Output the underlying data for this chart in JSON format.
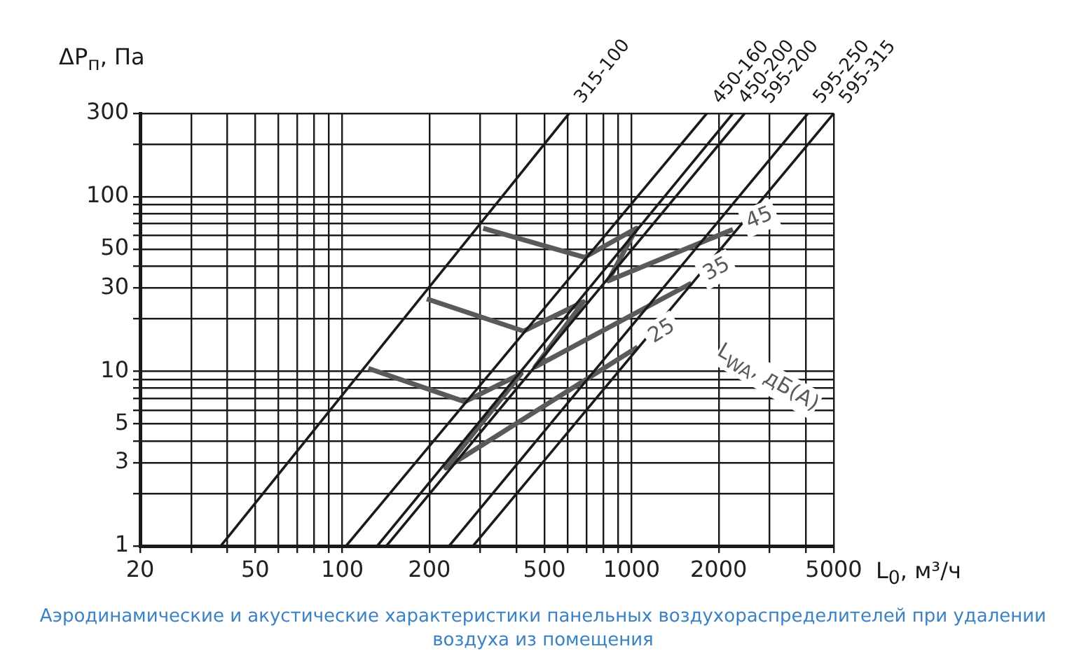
{
  "chart_data": {
    "type": "line",
    "title": "Аэродинамические и акустические характеристики панельных воздухораспределителей при удалении воздуха из помещения",
    "xlabel": "L$_{0}$, м³/ч",
    "ylabel": "ΔP$_{п}$, Па",
    "annotations": [
      "L$_{WA}$, дБ(А)"
    ],
    "log": "xy",
    "grid": true,
    "legend": false,
    "marker": "none",
    "xlim": [
      20,
      5000
    ],
    "ylim": [
      1,
      300
    ],
    "xticks": [
      20,
      {
        "value": 30,
        "label": null
      },
      {
        "value": 40,
        "label": null
      },
      50,
      {
        "value": 60,
        "label": null
      },
      {
        "value": 70,
        "label": null
      },
      {
        "value": 80,
        "label": null
      },
      {
        "value": 90,
        "label": null
      },
      100,
      200,
      {
        "value": 300,
        "label": null
      },
      {
        "value": 400,
        "label": null
      },
      500,
      {
        "value": 600,
        "label": null
      },
      {
        "value": 700,
        "label": null
      },
      {
        "value": 800,
        "label": null
      },
      {
        "value": 900,
        "label": null
      },
      1000,
      2000,
      {
        "value": 3000,
        "label": null
      },
      {
        "value": 4000,
        "label": null
      },
      5000
    ],
    "yticks": [
      1,
      {
        "value": 2,
        "label": null
      },
      3,
      {
        "value": 4,
        "label": null
      },
      5,
      {
        "value": 6,
        "label": null
      },
      {
        "value": 7,
        "label": null
      },
      {
        "value": 8,
        "label": null
      },
      {
        "value": 9,
        "label": null
      },
      10,
      {
        "value": 20,
        "label": null
      },
      30,
      {
        "value": 40,
        "label": null
      },
      50,
      {
        "value": 60,
        "label": null
      },
      {
        "value": 70,
        "label": null
      },
      {
        "value": 80,
        "label": null
      },
      {
        "value": 90,
        "label": null
      },
      100,
      {
        "value": 200,
        "label": null
      },
      300
    ],
    "series": [
      {
        "name": "315-100",
        "color": "#1a1a1a",
        "x": [
          38,
          608
        ],
        "values": [
          1,
          300
        ]
      },
      {
        "name": "450-160",
        "color": "#1a1a1a",
        "x": [
          103,
          1820
        ],
        "values": [
          1,
          300
        ]
      },
      {
        "name": "450-200",
        "color": "#1a1a1a",
        "x": [
          132,
          2240
        ],
        "values": [
          1,
          300
        ]
      },
      {
        "name": "595-200",
        "color": "#1a1a1a",
        "x": [
          142,
          2460
        ],
        "values": [
          1,
          300
        ]
      },
      {
        "name": "595-250",
        "color": "#1a1a1a",
        "x": [
          234,
          4070
        ],
        "values": [
          1,
          300
        ]
      },
      {
        "name": "595-315",
        "color": "#1a1a1a",
        "x": [
          283,
          5000
        ],
        "values": [
          1,
          300
        ]
      },
      {
        "name": "25",
        "color": "#5a5a5a",
        "x": [
          123,
          265,
          415,
          228,
          1050
        ],
        "values": [
          10.4,
          6.7,
          9.7,
          2.8,
          13.8
        ]
      },
      {
        "name": "35",
        "color": "#5a5a5a",
        "x": [
          196,
          423,
          681,
          464,
          1610
        ],
        "values": [
          26,
          17,
          25,
          10.6,
          32
        ]
      },
      {
        "name": "45",
        "color": "#5a5a5a",
        "x": [
          307,
          688,
          1040,
          830,
          2240
        ],
        "values": [
          66,
          45,
          66,
          33,
          65
        ]
      }
    ]
  }
}
